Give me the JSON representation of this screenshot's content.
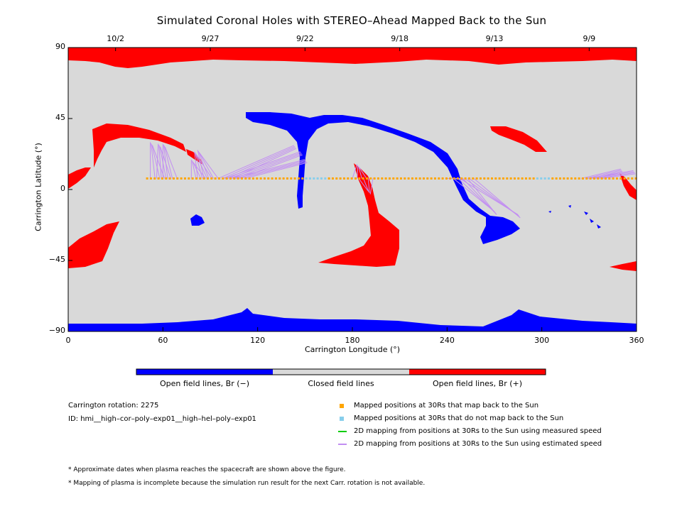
{
  "title": "Simulated Coronal Holes with STEREO–Ahead Mapped Back to the Sun",
  "chart_data": {
    "type": "map",
    "xlabel": "Carrington Longitude (°)",
    "ylabel": "Carrington Latitude (°)",
    "xlim": [
      0,
      360
    ],
    "ylim": [
      -90,
      90
    ],
    "xticks": [
      0,
      60,
      120,
      180,
      240,
      300,
      360
    ],
    "yticks": [
      90,
      45,
      0,
      -45,
      -90
    ],
    "ytick_labels": [
      "90",
      "45",
      "0",
      "−45",
      "−90"
    ],
    "top_date_ticks": [
      {
        "lon": 30,
        "label": "10/2"
      },
      {
        "lon": 90,
        "label": "9/27"
      },
      {
        "lon": 150,
        "label": "9/22"
      },
      {
        "lon": 210,
        "label": "9/18"
      },
      {
        "lon": 270,
        "label": "9/13"
      },
      {
        "lon": 330,
        "label": "9/9"
      }
    ],
    "colors": {
      "open_negative": "#0000ff",
      "closed": "#d9d9d9",
      "open_positive": "#ff0000",
      "mapped_back": "#ffa500",
      "not_mapped": "#87ceeb",
      "measured_speed": "#00cc00",
      "estimated_speed": "#c28ef2"
    },
    "spacecraft_track": {
      "latitude": 7,
      "lon_start": 50,
      "lon_end": 360,
      "not_mapped_lon_ranges": [
        [
          150,
          165
        ],
        [
          295,
          305
        ]
      ]
    },
    "mapping_lines": [
      {
        "lon30": 52,
        "footpoints": [
          [
            52,
            30
          ],
          [
            57,
            29
          ],
          [
            60,
            29
          ]
        ]
      },
      {
        "lon30": 78,
        "footpoints": [
          [
            78,
            19
          ],
          [
            80,
            24
          ],
          [
            82,
            25
          ]
        ]
      },
      {
        "lon30": 95,
        "footpoints": [
          [
            143,
            28
          ],
          [
            147,
            24
          ],
          [
            150,
            19
          ]
        ]
      },
      {
        "lon30": 180,
        "footpoints": [
          [
            183,
            16
          ],
          [
            190,
            -1
          ]
        ]
      },
      {
        "lon30": 240,
        "footpoints": [
          [
            250,
            7
          ],
          [
            270,
            -14
          ],
          [
            285,
            -16
          ]
        ]
      },
      {
        "lon30": 325,
        "footpoints": [
          [
            350,
            13
          ],
          [
            358,
            12
          ]
        ]
      }
    ],
    "colorbar": [
      {
        "label": "Open field lines, Br (−)",
        "color": "#0000ff"
      },
      {
        "label": "Closed field lines",
        "color": "#d9d9d9"
      },
      {
        "label": "Open field lines, Br (+)",
        "color": "#ff0000"
      }
    ]
  },
  "info": {
    "rotation": "Carrington rotation: 2275",
    "id": "ID: hmi__high–cor–poly–exp01__high–hel–poly–exp01"
  },
  "legend": [
    {
      "kind": "swatch",
      "color": "#ffa500",
      "label": "Mapped positions at 30Rs that map back to the Sun"
    },
    {
      "kind": "swatch",
      "color": "#87ceeb",
      "label": "Mapped positions at 30Rs that do not map back to the Sun"
    },
    {
      "kind": "line",
      "color": "#00cc00",
      "label": "2D mapping from positions at 30Rs to the Sun using measured speed"
    },
    {
      "kind": "line",
      "color": "#c28ef2",
      "label": "2D mapping from positions at 30Rs to the Sun using estimated speed"
    }
  ],
  "notes": [
    "* Approximate dates when plasma reaches the spacecraft are shown above the figure.",
    "* Mapping of plasma is incomplete because the simulation run result for the next Carr. rotation is not available."
  ]
}
